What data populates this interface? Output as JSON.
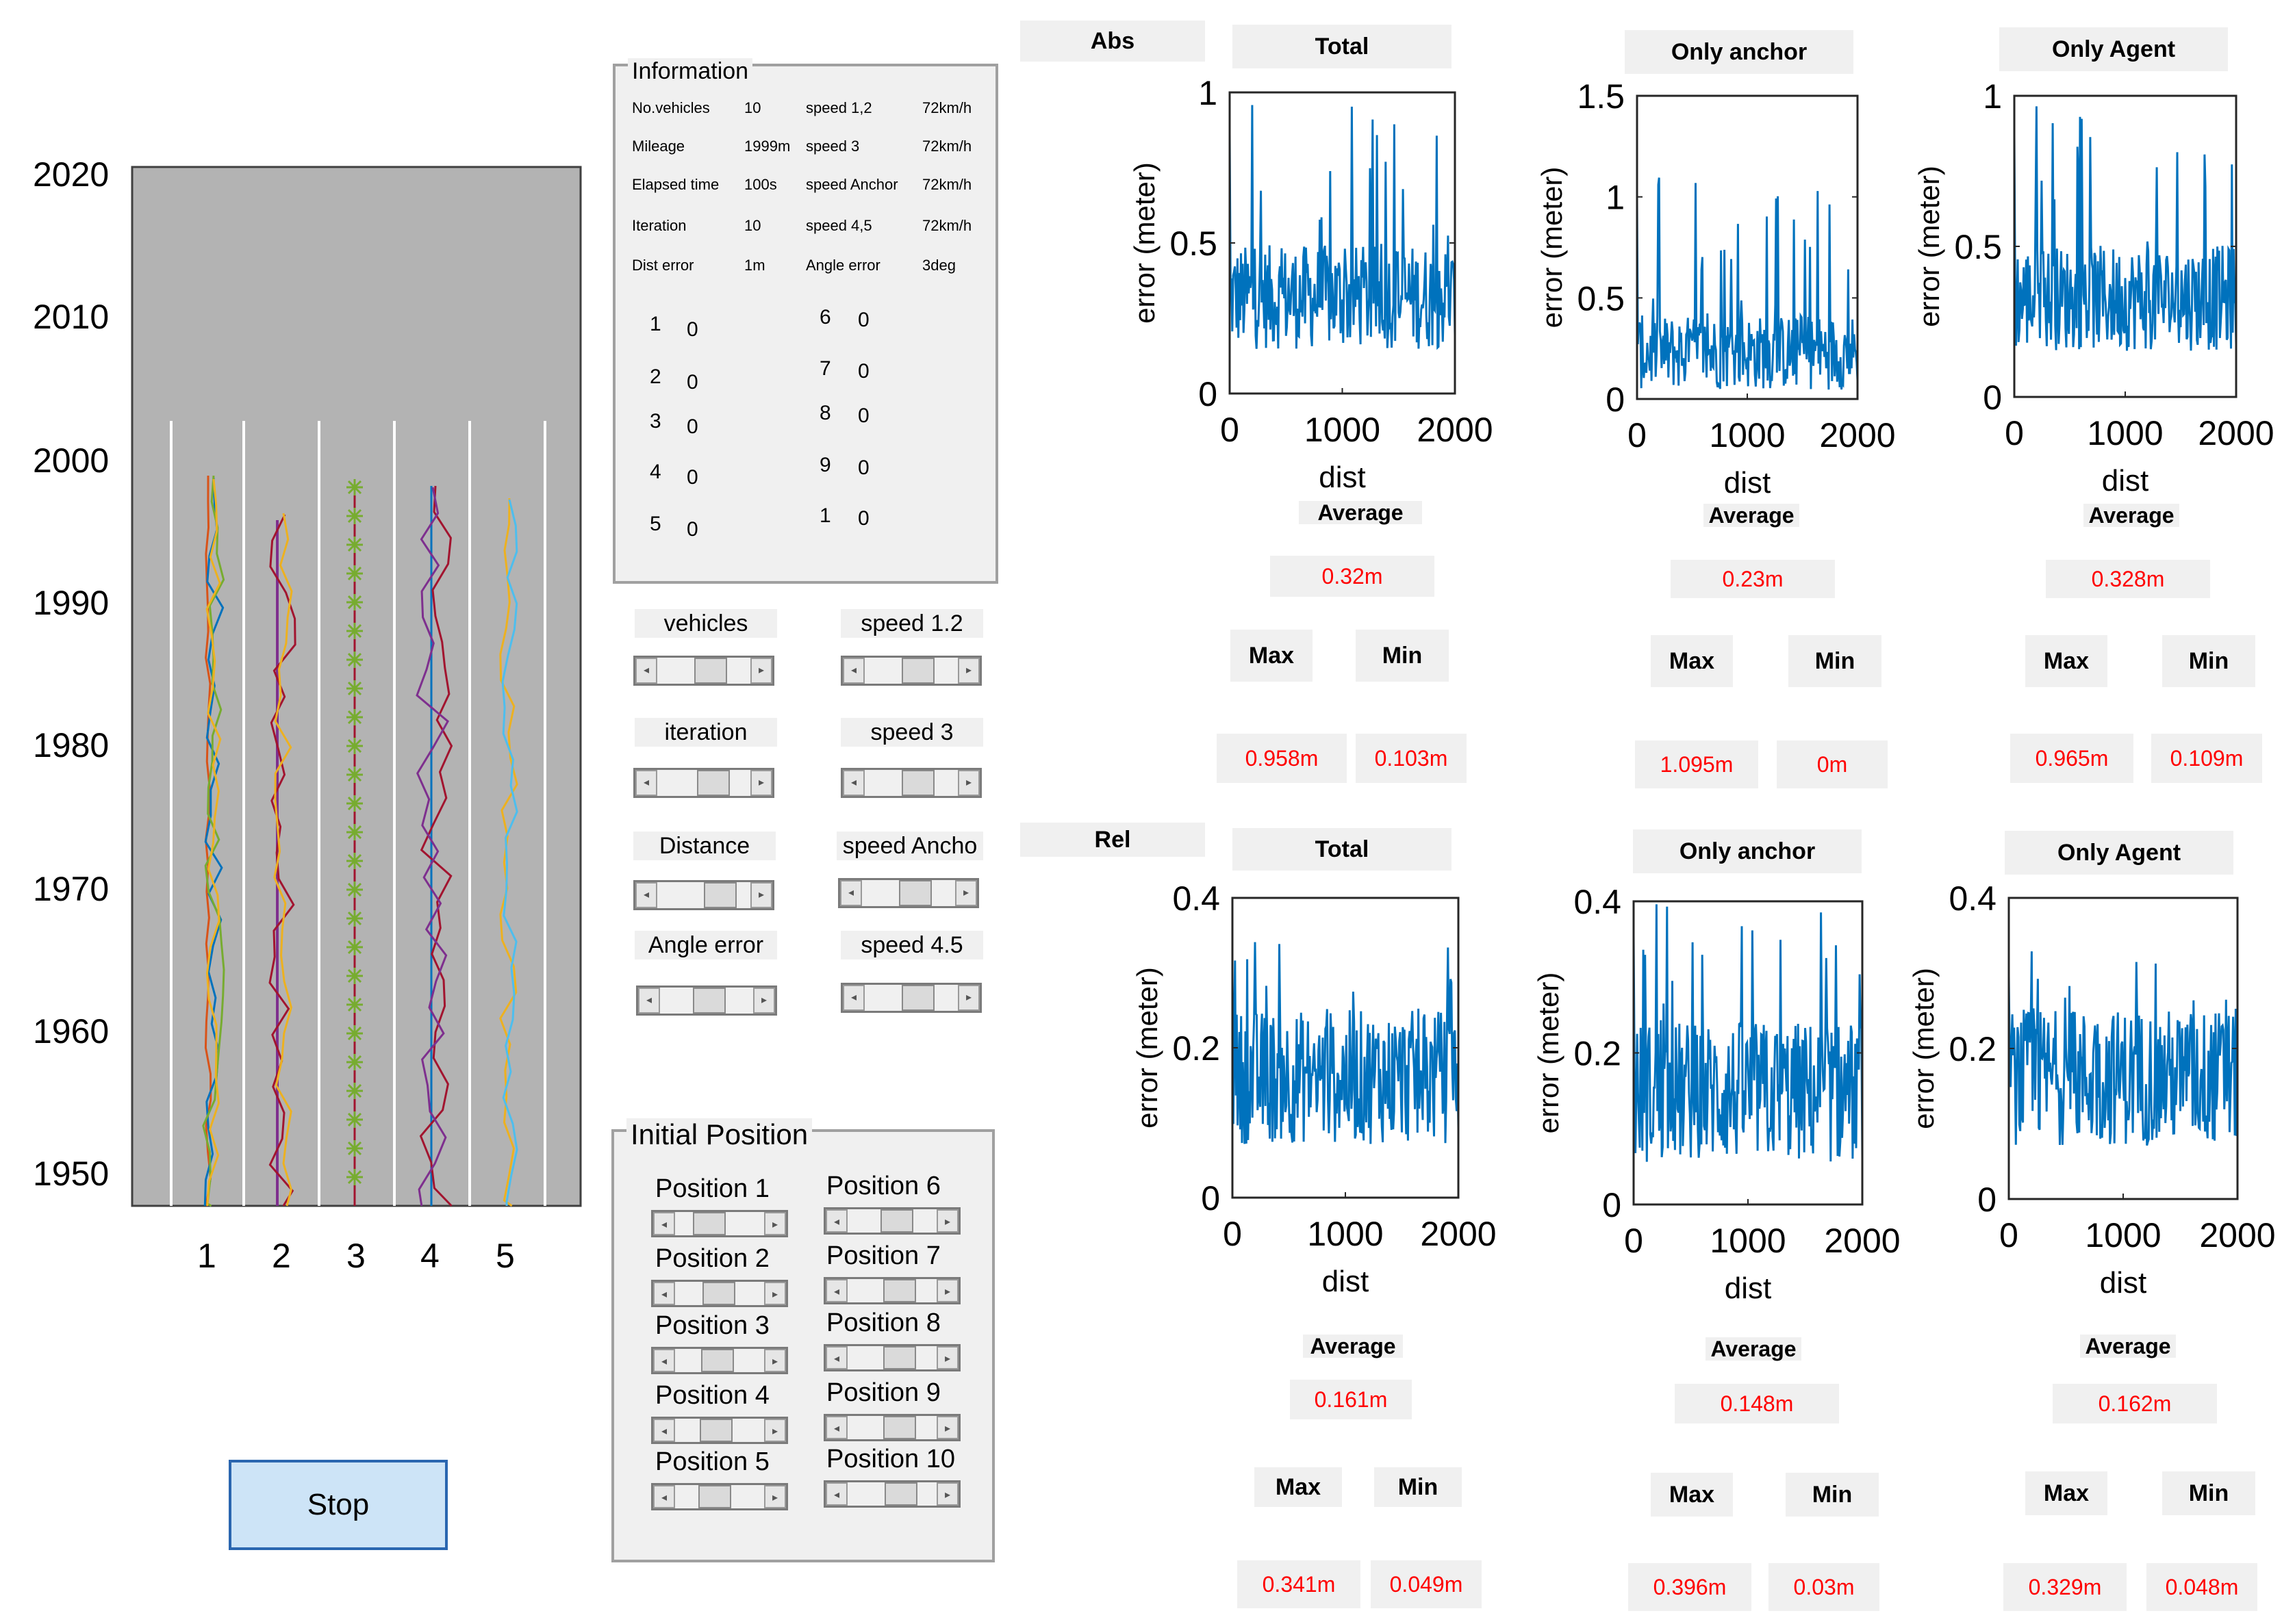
{
  "lane_view": {
    "y_ticks": [
      "2020",
      "2010",
      "2000",
      "1990",
      "1980",
      "1970",
      "1960",
      "1950"
    ],
    "x_ticks": [
      "1",
      "2",
      "3",
      "4",
      "5"
    ]
  },
  "info_panel": {
    "title": "Information",
    "rows": [
      {
        "k1": "No.vehicles",
        "v1": "10",
        "k2": "speed 1,2",
        "v2": "72km/h"
      },
      {
        "k1": "Mileage",
        "v1": "1999m",
        "k2": "speed 3",
        "v2": "72km/h"
      },
      {
        "k1": "Elapsed time",
        "v1": "100s",
        "k2": "speed Anchor",
        "v2": "72km/h"
      },
      {
        "k1": "Iteration",
        "v1": "10",
        "k2": "speed 4,5",
        "v2": "72km/h"
      },
      {
        "k1": "Dist error",
        "v1": "1m",
        "k2": "Angle error",
        "v2": "3deg"
      }
    ],
    "counts_left": [
      {
        "n": "1",
        "v": "0"
      },
      {
        "n": "2",
        "v": "0"
      },
      {
        "n": "3",
        "v": "0"
      },
      {
        "n": "4",
        "v": "0"
      },
      {
        "n": "5",
        "v": "0"
      }
    ],
    "counts_right": [
      {
        "n": "6",
        "v": "0"
      },
      {
        "n": "7",
        "v": "0"
      },
      {
        "n": "8",
        "v": "0"
      },
      {
        "n": "9",
        "v": "0"
      },
      {
        "n": "1",
        "v": "0"
      }
    ]
  },
  "controls": {
    "vehicles": "vehicles",
    "speed12": "speed 1.2",
    "iteration": "iteration",
    "speed3": "speed 3",
    "distance": "Distance",
    "speed_anchor": "speed Ancho",
    "angle_error": "Angle error",
    "speed45": "speed 4.5"
  },
  "initial_position": {
    "title": "Initial Position",
    "left": [
      "Position 1",
      "Position 2",
      "Position 3",
      "Position 4",
      "Position 5"
    ],
    "right": [
      "Position 6",
      "Position 7",
      "Position 8",
      "Position 9",
      "Position 10"
    ]
  },
  "stop_button": "Stop",
  "abs": {
    "label": "Abs",
    "plots": [
      {
        "title": "Total",
        "average_label": "Average",
        "average": "0.32m",
        "max_label": "Max",
        "max": "0.958m",
        "min_label": "Min",
        "min": "0.103m"
      },
      {
        "title": "Only anchor",
        "average_label": "Average",
        "average": "0.23m",
        "max_label": "Max",
        "max": "1.095m",
        "min_label": "Min",
        "min": "0m"
      },
      {
        "title": "Only Agent",
        "average_label": "Average",
        "average": "0.328m",
        "max_label": "Max",
        "max": "0.965m",
        "min_label": "Min",
        "min": "0.109m"
      }
    ]
  },
  "rel": {
    "label": "Rel",
    "plots": [
      {
        "title": "Total",
        "average_label": "Average",
        "average": "0.161m",
        "max_label": "Max",
        "max": "0.341m",
        "min_label": "Min",
        "min": "0.049m"
      },
      {
        "title": "Only anchor",
        "average_label": "Average",
        "average": "0.148m",
        "max_label": "Max",
        "max": "0.396m",
        "min_label": "Min",
        "min": "0.03m"
      },
      {
        "title": "Only Agent",
        "average_label": "Average",
        "average": "0.162m",
        "max_label": "Max",
        "max": "0.329m",
        "min_label": "Min",
        "min": "0.048m"
      }
    ]
  },
  "chart_data": [
    {
      "type": "line",
      "xlabel": "dist",
      "ylabel": "error (meter)",
      "xlim": [
        0,
        2000
      ],
      "ylim": [
        0,
        1
      ],
      "yticks": [
        "0",
        "0.5",
        "1"
      ],
      "xticks": [
        "0",
        "1000",
        "2000"
      ],
      "series": [
        {
          "color": "#0072bd",
          "summary": {
            "mean": 0.32,
            "max": 0.958,
            "min": 0.103
          }
        }
      ]
    },
    {
      "type": "line",
      "xlabel": "dist",
      "ylabel": "error (meter)",
      "xlim": [
        0,
        2000
      ],
      "ylim": [
        0,
        1.5
      ],
      "yticks": [
        "0",
        "0.5",
        "1",
        "1.5"
      ],
      "xticks": [
        "0",
        "1000",
        "2000"
      ],
      "series": [
        {
          "color": "#0072bd",
          "summary": {
            "mean": 0.23,
            "max": 1.095,
            "min": 0
          }
        }
      ]
    },
    {
      "type": "line",
      "xlabel": "dist",
      "ylabel": "error (meter)",
      "xlim": [
        0,
        2000
      ],
      "ylim": [
        0,
        1
      ],
      "yticks": [
        "0",
        "0.5",
        "1"
      ],
      "xticks": [
        "0",
        "1000",
        "2000"
      ],
      "series": [
        {
          "color": "#0072bd",
          "summary": {
            "mean": 0.328,
            "max": 0.965,
            "min": 0.109
          }
        }
      ]
    },
    {
      "type": "line",
      "xlabel": "dist",
      "ylabel": "error (meter)",
      "xlim": [
        0,
        2000
      ],
      "ylim": [
        0,
        0.4
      ],
      "yticks": [
        "0",
        "0.2",
        "0.4"
      ],
      "xticks": [
        "0",
        "1000",
        "2000"
      ],
      "series": [
        {
          "color": "#0072bd",
          "summary": {
            "mean": 0.161,
            "max": 0.341,
            "min": 0.049
          }
        }
      ]
    },
    {
      "type": "line",
      "xlabel": "dist",
      "ylabel": "error (meter)",
      "xlim": [
        0,
        2000
      ],
      "ylim": [
        0,
        0.4
      ],
      "yticks": [
        "0",
        "0.2",
        "0.4"
      ],
      "xticks": [
        "0",
        "1000",
        "2000"
      ],
      "series": [
        {
          "color": "#0072bd",
          "summary": {
            "mean": 0.148,
            "max": 0.396,
            "min": 0.03
          }
        }
      ]
    },
    {
      "type": "line",
      "xlabel": "dist",
      "ylabel": "error (meter)",
      "xlim": [
        0,
        2000
      ],
      "ylim": [
        0,
        0.4
      ],
      "yticks": [
        "0",
        "0.2",
        "0.4"
      ],
      "xticks": [
        "0",
        "1000",
        "2000"
      ],
      "series": [
        {
          "color": "#0072bd",
          "summary": {
            "mean": 0.162,
            "max": 0.329,
            "min": 0.048
          }
        }
      ]
    }
  ]
}
